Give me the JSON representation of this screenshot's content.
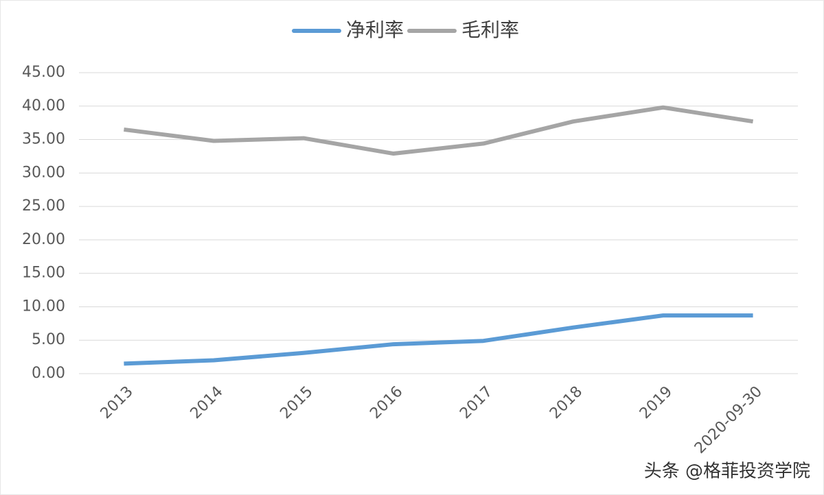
{
  "chart_data": {
    "type": "line",
    "categories": [
      "2013",
      "2014",
      "2015",
      "2016",
      "2017",
      "2018",
      "2019",
      "2020-09-30"
    ],
    "series": [
      {
        "name": "净利率",
        "color": "#5b9bd5",
        "values": [
          1.5,
          2.0,
          3.1,
          4.4,
          4.9,
          6.9,
          8.7,
          8.7
        ]
      },
      {
        "name": "毛利率",
        "color": "#a5a5a5",
        "values": [
          36.5,
          34.8,
          35.2,
          32.9,
          34.4,
          37.7,
          39.8,
          37.7
        ]
      }
    ],
    "ylim": [
      0,
      45
    ],
    "yticks": [
      {
        "value": 0,
        "label": "0.00"
      },
      {
        "value": 5,
        "label": "5.00"
      },
      {
        "value": 10,
        "label": "10.00"
      },
      {
        "value": 15,
        "label": "15.00"
      },
      {
        "value": 20,
        "label": "20.00"
      },
      {
        "value": 25,
        "label": "25.00"
      },
      {
        "value": 30,
        "label": "30.00"
      },
      {
        "value": 35,
        "label": "35.00"
      },
      {
        "value": 40,
        "label": "40.00"
      },
      {
        "value": 45,
        "label": "45.00"
      }
    ],
    "grid": true,
    "legend": "top"
  },
  "watermark": "头条 @格菲投资学院"
}
